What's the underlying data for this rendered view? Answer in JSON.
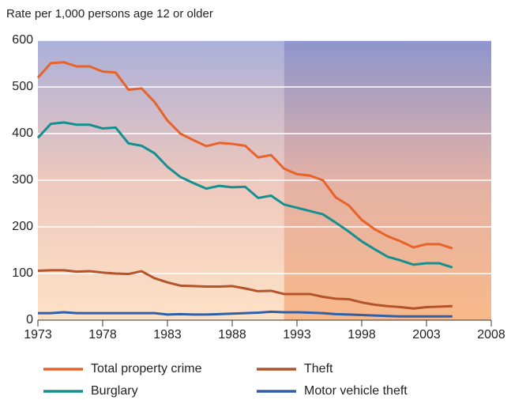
{
  "chart_data": {
    "type": "line",
    "y_axis_label": "Rate per 1,000 persons age 12 or older",
    "x": [
      1973,
      1974,
      1975,
      1976,
      1977,
      1978,
      1979,
      1980,
      1981,
      1982,
      1983,
      1984,
      1985,
      1986,
      1987,
      1988,
      1989,
      1990,
      1991,
      1992,
      1993,
      1994,
      1995,
      1996,
      1997,
      1998,
      1999,
      2000,
      2001,
      2002,
      2003,
      2004,
      2005
    ],
    "series": [
      {
        "name": "Total property crime",
        "color": "#e8622a",
        "values": [
          520,
          551,
          553,
          544,
          544,
          533,
          531,
          494,
          497,
          468,
          428,
          400,
          386,
          373,
          380,
          378,
          374,
          349,
          354,
          325,
          313,
          310,
          300,
          263,
          246,
          215,
          195,
          180,
          169,
          156,
          163,
          163,
          154
        ]
      },
      {
        "name": "Theft",
        "color": "#b5532b",
        "values": [
          106,
          107,
          107,
          104,
          105,
          102,
          100,
          99,
          105,
          90,
          81,
          74,
          73,
          72,
          72,
          73,
          68,
          62,
          63,
          56,
          56,
          56,
          50,
          46,
          45,
          38,
          33,
          30,
          28,
          25,
          28,
          29,
          30
        ]
      },
      {
        "name": "Burglary",
        "color": "#13908f",
        "values": [
          391,
          421,
          424,
          419,
          419,
          411,
          413,
          379,
          374,
          358,
          329,
          307,
          294,
          282,
          288,
          285,
          286,
          262,
          267,
          248,
          241,
          234,
          227,
          209,
          190,
          169,
          152,
          136,
          128,
          119,
          122,
          122,
          113
        ]
      },
      {
        "name": "Motor vehicle theft",
        "color": "#2f5fa8",
        "values": [
          15,
          15,
          17,
          15,
          15,
          15,
          15,
          15,
          15,
          15,
          12,
          13,
          12,
          12,
          13,
          14,
          15,
          16,
          18,
          17,
          17,
          16,
          15,
          13,
          12,
          11,
          10,
          9,
          8,
          8,
          8,
          8,
          8
        ]
      }
    ],
    "xlim": [
      1973,
      2008
    ],
    "xticks": [
      1973,
      1978,
      1983,
      1988,
      1993,
      1998,
      2003,
      2008
    ],
    "ylim": [
      0,
      600
    ],
    "yticks": [
      0,
      100,
      200,
      300,
      400,
      500,
      600
    ],
    "grid": true,
    "highlight_xrange": [
      1992,
      2008
    ],
    "legend": "bottom"
  }
}
